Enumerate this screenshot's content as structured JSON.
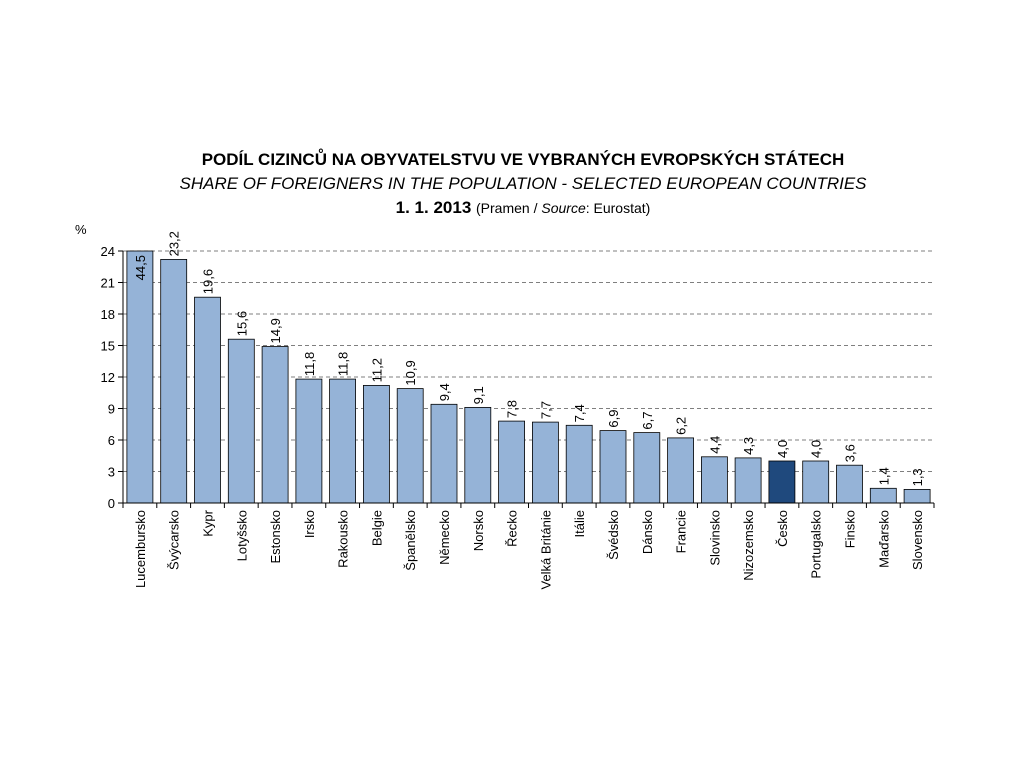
{
  "chart_data": {
    "type": "bar",
    "title": "PODÍL CIZINCŮ NA OBYVATELSTVU VE VYBRANÝCH EVROPSKÝCH STÁTECH",
    "subtitle": "SHARE OF FOREIGNERS IN THE POPULATION - SELECTED EUROPEAN COUNTRIES",
    "date": "1. 1. 2013",
    "source_prefix": "(Pramen / ",
    "source_label": "Source",
    "source_suffix": ": Eurostat)",
    "ylabel": "%",
    "ylim": [
      0,
      24
    ],
    "yticks": [
      "0",
      "3",
      "6",
      "9",
      "12",
      "15",
      "18",
      "21",
      "24"
    ],
    "grid": true,
    "categories": [
      "Lucembursko",
      "Švýcarsko",
      "Kypr",
      "Lotyšsko",
      "Estonsko",
      "Irsko",
      "Rakousko",
      "Belgie",
      "Španělsko",
      "Německo",
      "Norsko",
      "Řecko",
      "Velká Británie",
      "Itálie",
      "Švédsko",
      "Dánsko",
      "Francie",
      "Slovinsko",
      "Nizozemsko",
      "Česko",
      "Portugalsko",
      "Finsko",
      "Maďarsko",
      "Slovensko"
    ],
    "values": [
      44.5,
      23.2,
      19.6,
      15.6,
      14.9,
      11.8,
      11.8,
      11.2,
      10.9,
      9.4,
      9.1,
      7.8,
      7.7,
      7.4,
      6.9,
      6.7,
      6.2,
      4.4,
      4.3,
      4.0,
      4.0,
      3.6,
      1.4,
      1.3
    ],
    "value_labels": [
      "44,5",
      "23,2",
      "19,6",
      "15,6",
      "14,9",
      "11,8",
      "11,8",
      "11,2",
      "10,9",
      "9,4",
      "9,1",
      "7,8",
      "7,7",
      "7,4",
      "6,9",
      "6,7",
      "6,2",
      "4,4",
      "4,3",
      "4,0",
      "4,0",
      "3,6",
      "1,4",
      "1,3"
    ],
    "bar_color": "#95b3d7",
    "highlight_category": "Česko",
    "highlight_color": "#1f497d"
  }
}
